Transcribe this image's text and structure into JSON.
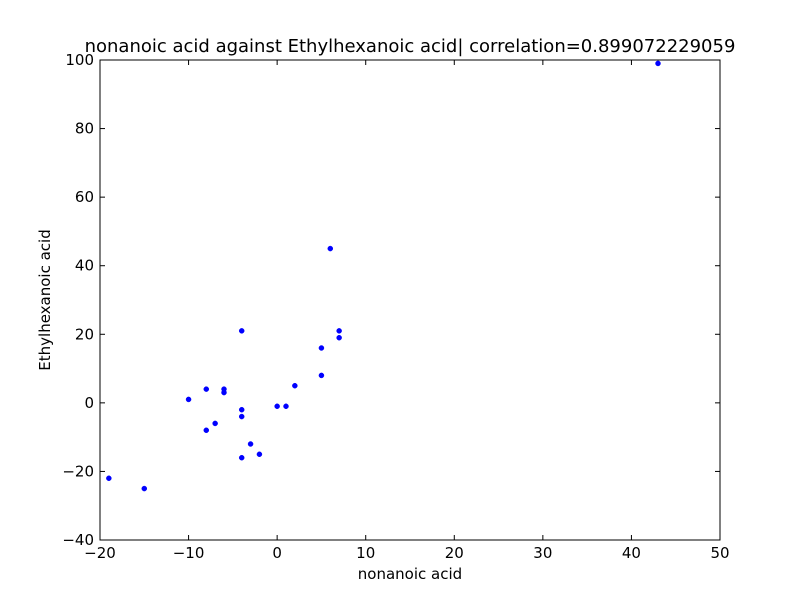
{
  "chart_data": {
    "type": "scatter",
    "title": "nonanoic acid against Ethylhexanoic acid| correlation=0.899072229059",
    "xlabel": "nonanoic acid",
    "ylabel": "Ethylhexanoic acid",
    "xlim": [
      -20,
      50
    ],
    "ylim": [
      -40,
      100
    ],
    "xticks": [
      -20,
      -10,
      0,
      10,
      20,
      30,
      40,
      50
    ],
    "yticks": [
      -40,
      -20,
      0,
      20,
      40,
      60,
      80,
      100
    ],
    "grid": false,
    "marker_color": "#0000ff",
    "points": [
      {
        "x": -19,
        "y": -22
      },
      {
        "x": -15,
        "y": -25
      },
      {
        "x": -10,
        "y": 1
      },
      {
        "x": -8,
        "y": 4
      },
      {
        "x": -8,
        "y": -8
      },
      {
        "x": -7,
        "y": -6
      },
      {
        "x": -6,
        "y": 4
      },
      {
        "x": -6,
        "y": 3
      },
      {
        "x": -4,
        "y": 21
      },
      {
        "x": -4,
        "y": -2
      },
      {
        "x": -4,
        "y": -4
      },
      {
        "x": -4,
        "y": -16
      },
      {
        "x": -3,
        "y": -12
      },
      {
        "x": -2,
        "y": -15
      },
      {
        "x": 0,
        "y": -1
      },
      {
        "x": 1,
        "y": -1
      },
      {
        "x": 2,
        "y": 5
      },
      {
        "x": 5,
        "y": 16
      },
      {
        "x": 5,
        "y": 8
      },
      {
        "x": 6,
        "y": 45
      },
      {
        "x": 7,
        "y": 21
      },
      {
        "x": 7,
        "y": 19
      },
      {
        "x": 43,
        "y": 99
      }
    ]
  }
}
